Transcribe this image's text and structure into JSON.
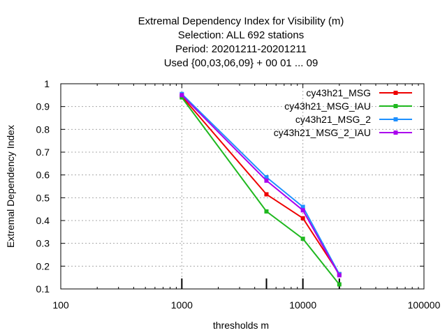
{
  "chart_data": {
    "type": "line",
    "title_lines": [
      "Extremal Dependency Index  for Visibility (m)",
      "Selection: ALL    692 stations",
      "Period: 20201211-20201211",
      "Used {00,03,06,09} + 00 01 ... 09"
    ],
    "xlabel": "thresholds m",
    "ylabel": "Extremal Dependency Index",
    "xscale": "log",
    "xlim": [
      100,
      100000
    ],
    "ylim": [
      0.1,
      1.0
    ],
    "x_ticks": [
      100,
      1000,
      10000,
      100000
    ],
    "x_tick_labels": [
      "100",
      "1000",
      "10000",
      "100000"
    ],
    "y_ticks": [
      0.1,
      0.2,
      0.3,
      0.4,
      0.5,
      0.6,
      0.7,
      0.8,
      0.9,
      1.0
    ],
    "y_tick_labels": [
      "0.1",
      "0.2",
      "0.3",
      "0.4",
      "0.5",
      "0.6",
      "0.7",
      "0.8",
      "0.9",
      "1"
    ],
    "grid": true,
    "legend_position": "top-right",
    "x": [
      1000,
      5000,
      10000,
      20000
    ],
    "series": [
      {
        "name": "cy43h21_MSG",
        "color": "#ee0000",
        "values": [
          0.945,
          0.515,
          0.41,
          0.165
        ]
      },
      {
        "name": "cy43h21_MSG_IAU",
        "color": "#1fb81f",
        "values": [
          0.94,
          0.44,
          0.32,
          0.12
        ]
      },
      {
        "name": "cy43h21_MSG_2",
        "color": "#1e90ff",
        "values": [
          0.955,
          0.59,
          0.46,
          0.165
        ]
      },
      {
        "name": "cy43h21_MSG_2_IAU",
        "color": "#aa00ee",
        "values": [
          0.95,
          0.575,
          0.445,
          0.16
        ]
      }
    ],
    "threshold_markers": [
      1000,
      5000,
      10000,
      20000
    ]
  }
}
